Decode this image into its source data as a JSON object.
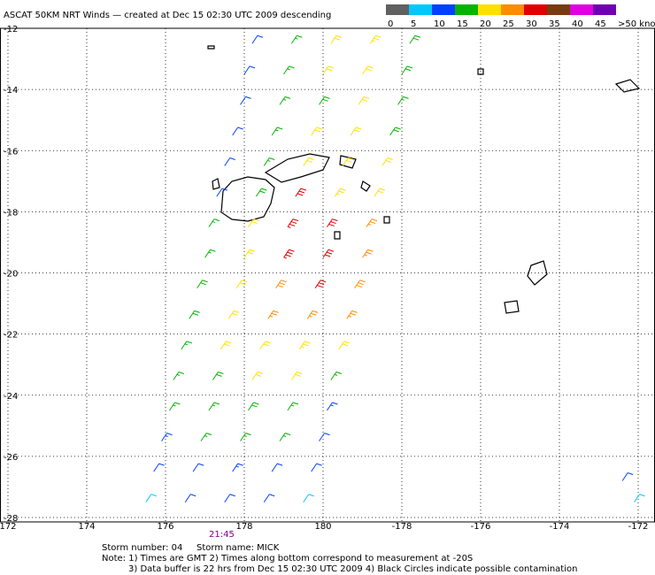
{
  "header": {
    "title": "ASCAT 50KM NRT Winds — created at Dec 15 02:30 UTC 2009 descending"
  },
  "colorbar": {
    "labels": [
      "0",
      "5",
      "10",
      "15",
      "20",
      "25",
      "30",
      "35",
      "40",
      "45",
      ">50 knots"
    ],
    "bin_width": 5,
    "colors": [
      "#606060",
      "#00c8ff",
      "#0040ff",
      "#00b400",
      "#ffe000",
      "#ff8c00",
      "#e00000",
      "#7a3a10",
      "#e000e0",
      "#7000b0"
    ]
  },
  "map": {
    "lonlim": [
      172,
      188.6
    ],
    "latlim": [
      -12,
      -28
    ],
    "lat_ticks": [
      -12,
      -14,
      -16,
      -18,
      -20,
      -22,
      -24,
      -26,
      -28
    ],
    "lon_ticks": [
      172,
      174,
      176,
      178,
      180,
      {
        "value": 182,
        "label": "-178"
      },
      {
        "value": 184,
        "label": "-176"
      },
      {
        "value": 186,
        "label": "-174"
      },
      {
        "value": 188,
        "label": "-172"
      }
    ],
    "barbs": [
      [
        178.2,
        -12.5,
        12
      ],
      [
        179.2,
        -12.5,
        15
      ],
      [
        180.2,
        -12.5,
        22
      ],
      [
        181.2,
        -12.5,
        23
      ],
      [
        182.2,
        -12.5,
        18
      ],
      [
        178.0,
        -13.5,
        12
      ],
      [
        179.0,
        -13.5,
        17
      ],
      [
        180.0,
        -13.5,
        20
      ],
      [
        181.0,
        -13.5,
        22
      ],
      [
        182.0,
        -13.5,
        18
      ],
      [
        177.9,
        -14.5,
        10
      ],
      [
        178.9,
        -14.5,
        16
      ],
      [
        179.9,
        -14.5,
        18
      ],
      [
        180.9,
        -14.5,
        20
      ],
      [
        181.9,
        -14.5,
        17
      ],
      [
        177.7,
        -15.5,
        11
      ],
      [
        178.7,
        -15.5,
        15
      ],
      [
        179.7,
        -15.5,
        20
      ],
      [
        180.7,
        -15.5,
        22
      ],
      [
        181.7,
        -15.5,
        18
      ],
      [
        177.5,
        -16.5,
        12
      ],
      [
        178.5,
        -16.5,
        17
      ],
      [
        179.5,
        -16.5,
        20
      ],
      [
        180.5,
        -16.5,
        22
      ],
      [
        181.5,
        -16.5,
        20
      ],
      [
        177.3,
        -17.5,
        12
      ],
      [
        178.3,
        -17.5,
        18
      ],
      [
        179.3,
        -17.5,
        30
      ],
      [
        180.3,
        -17.5,
        24
      ],
      [
        181.3,
        -17.5,
        22
      ],
      [
        177.1,
        -18.5,
        15
      ],
      [
        178.1,
        -18.5,
        20
      ],
      [
        179.1,
        -18.5,
        33
      ],
      [
        180.1,
        -18.5,
        30
      ],
      [
        181.1,
        -18.5,
        25
      ],
      [
        177.0,
        -19.5,
        15
      ],
      [
        178.0,
        -19.5,
        22
      ],
      [
        179.0,
        -19.5,
        33
      ],
      [
        180.0,
        -19.5,
        32
      ],
      [
        181.0,
        -19.5,
        27
      ],
      [
        176.8,
        -20.5,
        18
      ],
      [
        177.8,
        -20.5,
        22
      ],
      [
        178.8,
        -20.5,
        28
      ],
      [
        179.8,
        -20.5,
        32
      ],
      [
        180.8,
        -20.5,
        28
      ],
      [
        176.6,
        -21.5,
        18
      ],
      [
        177.6,
        -21.5,
        22
      ],
      [
        178.6,
        -21.5,
        25
      ],
      [
        179.6,
        -21.5,
        27
      ],
      [
        180.6,
        -21.5,
        26
      ],
      [
        176.4,
        -22.5,
        17
      ],
      [
        177.4,
        -22.5,
        20
      ],
      [
        178.4,
        -22.5,
        22
      ],
      [
        179.4,
        -22.5,
        24
      ],
      [
        180.4,
        -22.5,
        22
      ],
      [
        176.2,
        -23.5,
        16
      ],
      [
        177.2,
        -23.5,
        18
      ],
      [
        178.2,
        -23.5,
        20
      ],
      [
        179.2,
        -23.5,
        22
      ],
      [
        180.2,
        -23.5,
        16
      ],
      [
        176.1,
        -24.5,
        16
      ],
      [
        177.1,
        -24.5,
        17
      ],
      [
        178.1,
        -24.5,
        18
      ],
      [
        179.1,
        -24.5,
        17
      ],
      [
        180.1,
        -24.5,
        14
      ],
      [
        175.9,
        -25.5,
        14
      ],
      [
        176.9,
        -25.5,
        15
      ],
      [
        177.9,
        -25.5,
        15
      ],
      [
        178.9,
        -25.5,
        15
      ],
      [
        179.9,
        -25.5,
        12
      ],
      [
        175.7,
        -26.5,
        10
      ],
      [
        176.7,
        -26.5,
        12
      ],
      [
        177.7,
        -26.5,
        13
      ],
      [
        178.7,
        -26.5,
        12
      ],
      [
        179.7,
        -26.5,
        10
      ],
      [
        175.5,
        -27.5,
        8
      ],
      [
        176.5,
        -27.5,
        10
      ],
      [
        177.5,
        -27.5,
        10
      ],
      [
        178.5,
        -27.5,
        10
      ],
      [
        179.5,
        -27.5,
        8
      ],
      [
        187.6,
        -26.8,
        12
      ],
      [
        187.9,
        -27.5,
        8
      ]
    ]
  },
  "time_label": "21:45",
  "footer": {
    "storm_number": "Storm number: 04",
    "storm_name": "Storm name: MICK",
    "notes": [
      "Note: 1) Times are GMT  2) Times along bottom correspond to measurement at -20S",
      "3) Data buffer is 22 hrs from Dec 15 02:30 UTC 2009  4) Black Circles indicate possible contamination"
    ]
  }
}
